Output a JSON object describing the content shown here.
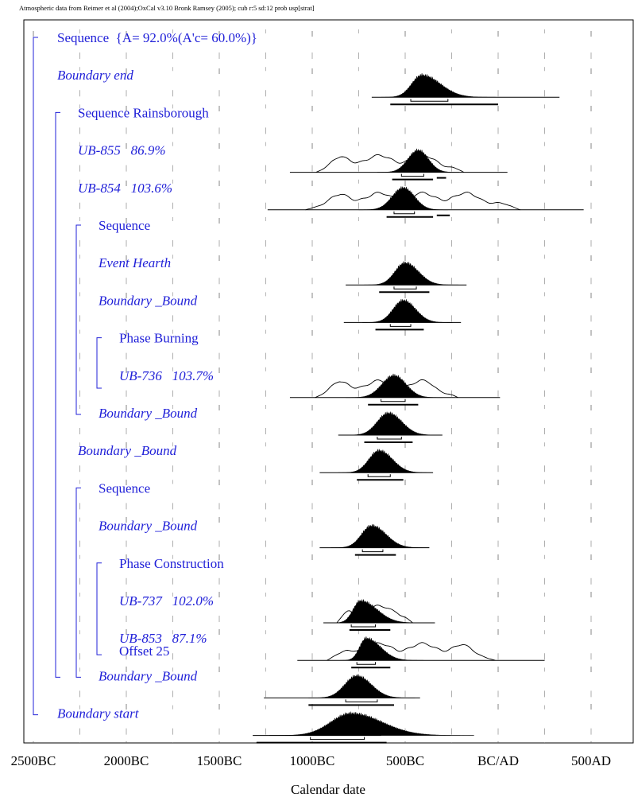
{
  "header": "Atmospheric data from Reimer et al (2004);OxCal v3.10 Bronk Ramsey (2005); cub r:5 sd:12 prob usp[strat]",
  "chart_data": {
    "type": "ridgeline-probability",
    "xlabel": "Calendar date",
    "x_ticks": [
      {
        "value": -2500,
        "label": "2500BC"
      },
      {
        "value": -2000,
        "label": "2000BC"
      },
      {
        "value": -1500,
        "label": "1500BC"
      },
      {
        "value": -1000,
        "label": "1000BC"
      },
      {
        "value": -500,
        "label": "500BC"
      },
      {
        "value": 0,
        "label": "BC/AD"
      },
      {
        "value": 500,
        "label": "500AD"
      }
    ],
    "xlim": [
      -2500,
      750
    ],
    "grid": "dashed vertical",
    "rows": [
      {
        "label": "Sequence  {A= 92.0%(A'c= 60.0%)}",
        "italic": false,
        "indent": 1,
        "dist": null
      },
      {
        "label": "Boundary end",
        "italic": true,
        "indent": 1,
        "dist": {
          "type": "filled",
          "peak": -410,
          "sd": 55,
          "skew": 1.8,
          "range": [
            -680,
            330
          ],
          "bar68": [
            -470,
            -270
          ],
          "bar95": [
            -580,
            0
          ]
        }
      },
      {
        "label": "Sequence Rainsborough",
        "italic": false,
        "indent": 2,
        "dist": null
      },
      {
        "label": "UB-855   86.9%",
        "italic": true,
        "indent": 2,
        "dist": {
          "type": "calib",
          "peak": -430,
          "sd": 55,
          "skew": 1,
          "range": [
            -1120,
            50
          ],
          "bar68": [
            -520,
            -400
          ],
          "bar95": [
            -570,
            -350
          ],
          "bar95b": [
            -330,
            -280
          ]
        }
      },
      {
        "label": "UB-854   103.6%",
        "italic": true,
        "indent": 2,
        "dist": {
          "type": "calib",
          "peak": -510,
          "sd": 60,
          "skew": 1,
          "range": [
            -1240,
            460
          ],
          "bar68": [
            -560,
            -450
          ],
          "bar95": [
            -600,
            -350
          ],
          "bar95b": [
            -330,
            -260
          ]
        }
      },
      {
        "label": "Sequence",
        "italic": false,
        "indent": 3,
        "dist": null
      },
      {
        "label": "Event Hearth",
        "italic": true,
        "indent": 3,
        "dist": {
          "type": "filled",
          "peak": -500,
          "sd": 55,
          "skew": 1.3,
          "range": [
            -820,
            -170
          ],
          "bar68": [
            -560,
            -440
          ],
          "bar95": [
            -640,
            -370
          ]
        }
      },
      {
        "label": "Boundary _Bound",
        "italic": true,
        "indent": 3,
        "dist": {
          "type": "filled",
          "peak": -510,
          "sd": 55,
          "skew": 1.2,
          "range": [
            -830,
            -200
          ],
          "bar68": [
            -580,
            -470
          ],
          "bar95": [
            -660,
            -400
          ]
        }
      },
      {
        "label": "Phase Burning",
        "italic": false,
        "indent": 4,
        "dist": null
      },
      {
        "label": "UB-736   103.7%",
        "italic": true,
        "indent": 4,
        "dist": {
          "type": "calib",
          "peak": -560,
          "sd": 65,
          "skew": 1,
          "range": [
            -1120,
            10
          ],
          "bar68": [
            -630,
            -500
          ],
          "bar95": [
            -700,
            -430
          ]
        }
      },
      {
        "label": "Boundary _Bound",
        "italic": true,
        "indent": 3,
        "dist": {
          "type": "filled",
          "peak": -590,
          "sd": 60,
          "skew": 1.2,
          "range": [
            -860,
            -300
          ],
          "bar68": [
            -650,
            -520
          ],
          "bar95": [
            -720,
            -460
          ]
        }
      },
      {
        "label": "Boundary _Bound",
        "italic": true,
        "indent": 2,
        "dist": {
          "type": "filled",
          "peak": -640,
          "sd": 55,
          "skew": 1.3,
          "range": [
            -960,
            -350
          ],
          "bar68": [
            -700,
            -580
          ],
          "bar95": [
            -760,
            -510
          ]
        }
      },
      {
        "label": "Sequence",
        "italic": false,
        "indent": 3,
        "dist": null
      },
      {
        "label": "Boundary _Bound",
        "italic": true,
        "indent": 3,
        "dist": {
          "type": "filled",
          "peak": -680,
          "sd": 55,
          "skew": 1.4,
          "range": [
            -960,
            -370
          ],
          "bar68": [
            -730,
            -620
          ],
          "bar95": [
            -770,
            -550
          ]
        }
      },
      {
        "label": "Phase Construction",
        "italic": false,
        "indent": 4,
        "dist": null
      },
      {
        "label": "UB-737   102.0%",
        "italic": true,
        "indent": 4,
        "dist": {
          "type": "calib",
          "peak": -740,
          "sd": 40,
          "skew": 2.2,
          "range": [
            -940,
            -340
          ],
          "bar68": [
            -790,
            -660
          ],
          "bar95": [
            -800,
            -580
          ]
        }
      },
      {
        "label": "UB-853   87.1%",
        "italic": true,
        "indent": 4,
        "dist": {
          "type": "calib",
          "peak": -710,
          "sd": 35,
          "skew": 2.2,
          "range": [
            -1080,
            250
          ],
          "bar68": [
            -760,
            -660
          ],
          "bar95": [
            -790,
            -580
          ]
        }
      },
      {
        "label": "Boundary _Bound",
        "italic": true,
        "indent": 3,
        "dist": {
          "type": "filled",
          "peak": -760,
          "sd": 65,
          "skew": 1.2,
          "range": [
            -1260,
            -420
          ],
          "bar68": [
            -820,
            -650
          ],
          "bar95": [
            -1020,
            -560
          ]
        }
      },
      {
        "label": "Boundary start",
        "italic": true,
        "indent": 1,
        "dist": {
          "type": "filled",
          "peak": -790,
          "sd": 110,
          "skew": 1.5,
          "range": [
            -1320,
            -630
          ],
          "bar68": [
            -1010,
            -720
          ],
          "bar95": [
            -1300,
            -600
          ]
        }
      }
    ],
    "overlay_text": {
      "label": "Offset 25",
      "row": 16
    }
  }
}
